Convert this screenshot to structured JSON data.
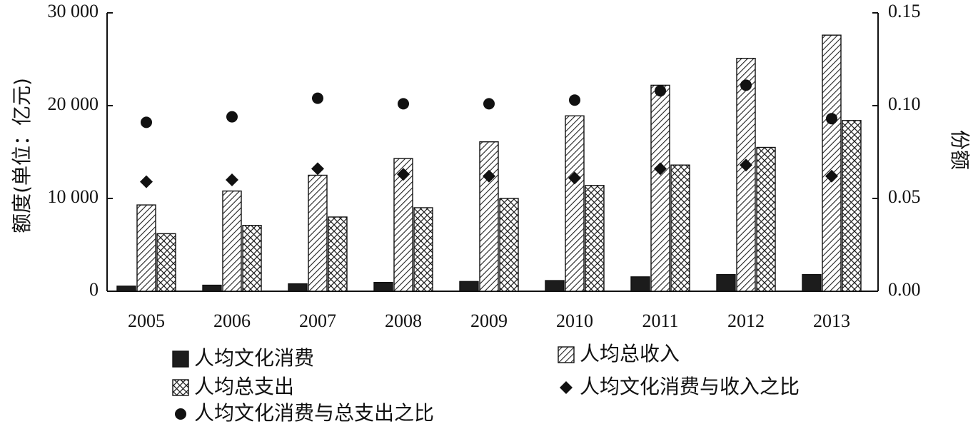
{
  "chart_data": {
    "type": "bar",
    "categories": [
      "2005",
      "2006",
      "2007",
      "2008",
      "2009",
      "2010",
      "2011",
      "2012",
      "2013"
    ],
    "ylabel": "额度(单位：亿元)",
    "y2label": "份额",
    "ylim": [
      0,
      30000
    ],
    "y2lim": [
      0,
      0.15
    ],
    "yticks": [
      0,
      10000,
      20000,
      30000
    ],
    "ytick_labels": [
      "0",
      "10 000",
      "20 000",
      "30 000"
    ],
    "y2ticks": [
      0,
      0.05,
      0.1,
      0.15
    ],
    "y2tick_labels": [
      "0.00",
      "0.05",
      "0.10",
      "0.15"
    ],
    "grid": false,
    "legend_position": "bottom",
    "series": [
      {
        "name": "人均文化消费",
        "kind": "bar",
        "axis": "left",
        "pattern": "solid-dark",
        "values": [
          550,
          650,
          800,
          950,
          1050,
          1150,
          1550,
          1800,
          1800
        ]
      },
      {
        "name": "人均总收入",
        "kind": "bar",
        "axis": "left",
        "pattern": "diagonal-hatch",
        "values": [
          9300,
          10800,
          12500,
          14300,
          16100,
          18900,
          22200,
          25100,
          27600
        ]
      },
      {
        "name": "人均总支出",
        "kind": "bar",
        "axis": "left",
        "pattern": "crosshatch",
        "values": [
          6200,
          7100,
          8000,
          9000,
          10000,
          11400,
          13600,
          15500,
          18400
        ]
      },
      {
        "name": "人均文化消费与收入之比",
        "kind": "marker",
        "axis": "right",
        "marker": "diamond",
        "values": [
          0.059,
          0.06,
          0.066,
          0.063,
          0.062,
          0.061,
          0.066,
          0.068,
          0.062
        ]
      },
      {
        "name": "人均文化消费与总支出之比",
        "kind": "marker",
        "axis": "right",
        "marker": "circle",
        "values": [
          0.091,
          0.094,
          0.104,
          0.101,
          0.101,
          0.103,
          0.108,
          0.111,
          0.093
        ]
      }
    ],
    "legend": [
      {
        "series": 0,
        "label": "人均文化消费"
      },
      {
        "series": 1,
        "label": "人均总收入"
      },
      {
        "series": 2,
        "label": "人均总支出"
      },
      {
        "series": 3,
        "label": "人均文化消费与收入之比"
      },
      {
        "series": 4,
        "label": "人均文化消费与总支出之比"
      }
    ]
  }
}
